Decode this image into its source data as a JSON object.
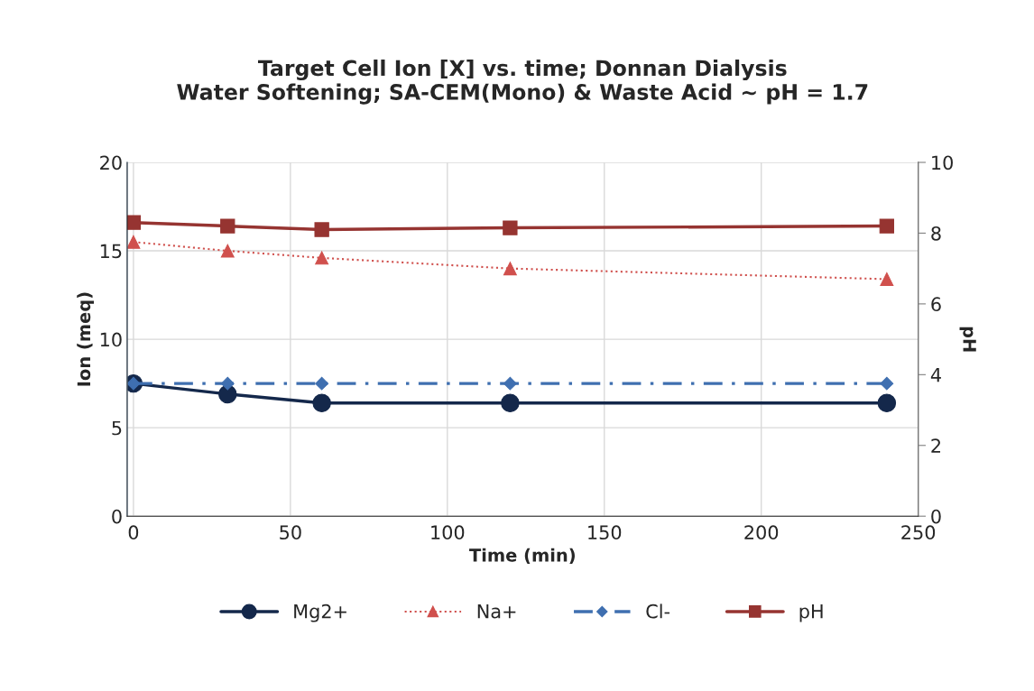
{
  "chart_data": {
    "type": "line",
    "title": "Target Cell Ion [X] vs. time; Donnan Dialysis\nWater Softening; SA-CEM(Mono) & Waste Acid ~ pH = 1.7",
    "xlabel": "Time (min)",
    "ylabel": "Ion (meq)",
    "y2label": "pH",
    "x": [
      0,
      30,
      60,
      120,
      240
    ],
    "series": [
      {
        "name": "Mg2+",
        "color": "#14284b",
        "values": [
          7.5,
          6.9,
          6.4,
          6.4,
          6.4
        ],
        "marker": "circle",
        "line_style": "solid"
      },
      {
        "name": "Na+",
        "color": "#d0504d",
        "values": [
          15.5,
          15.0,
          14.6,
          14.0,
          13.4
        ],
        "marker": "triangle",
        "line_style": "dotted"
      },
      {
        "name": "Cl-",
        "color": "#3f6fb0",
        "values": [
          7.5,
          7.5,
          7.5,
          7.5,
          7.5
        ],
        "marker": "diamond",
        "line_style": "dashed"
      },
      {
        "name": "pH",
        "color": "#963431",
        "values": [
          8.3,
          8.2,
          8.1,
          8.15,
          8.2
        ],
        "marker": "square",
        "line_style": "solid",
        "axis": "y2"
      }
    ],
    "xlim": [
      -2,
      250
    ],
    "xticks": [
      0,
      50,
      100,
      150,
      200,
      250
    ],
    "ylim": [
      0,
      20
    ],
    "yticks": [
      0,
      5,
      10,
      15,
      20
    ],
    "y2lim": [
      0,
      10
    ],
    "y2ticks": [
      0,
      2,
      4,
      6,
      8,
      10
    ],
    "grid": true,
    "legend": "bottom"
  }
}
